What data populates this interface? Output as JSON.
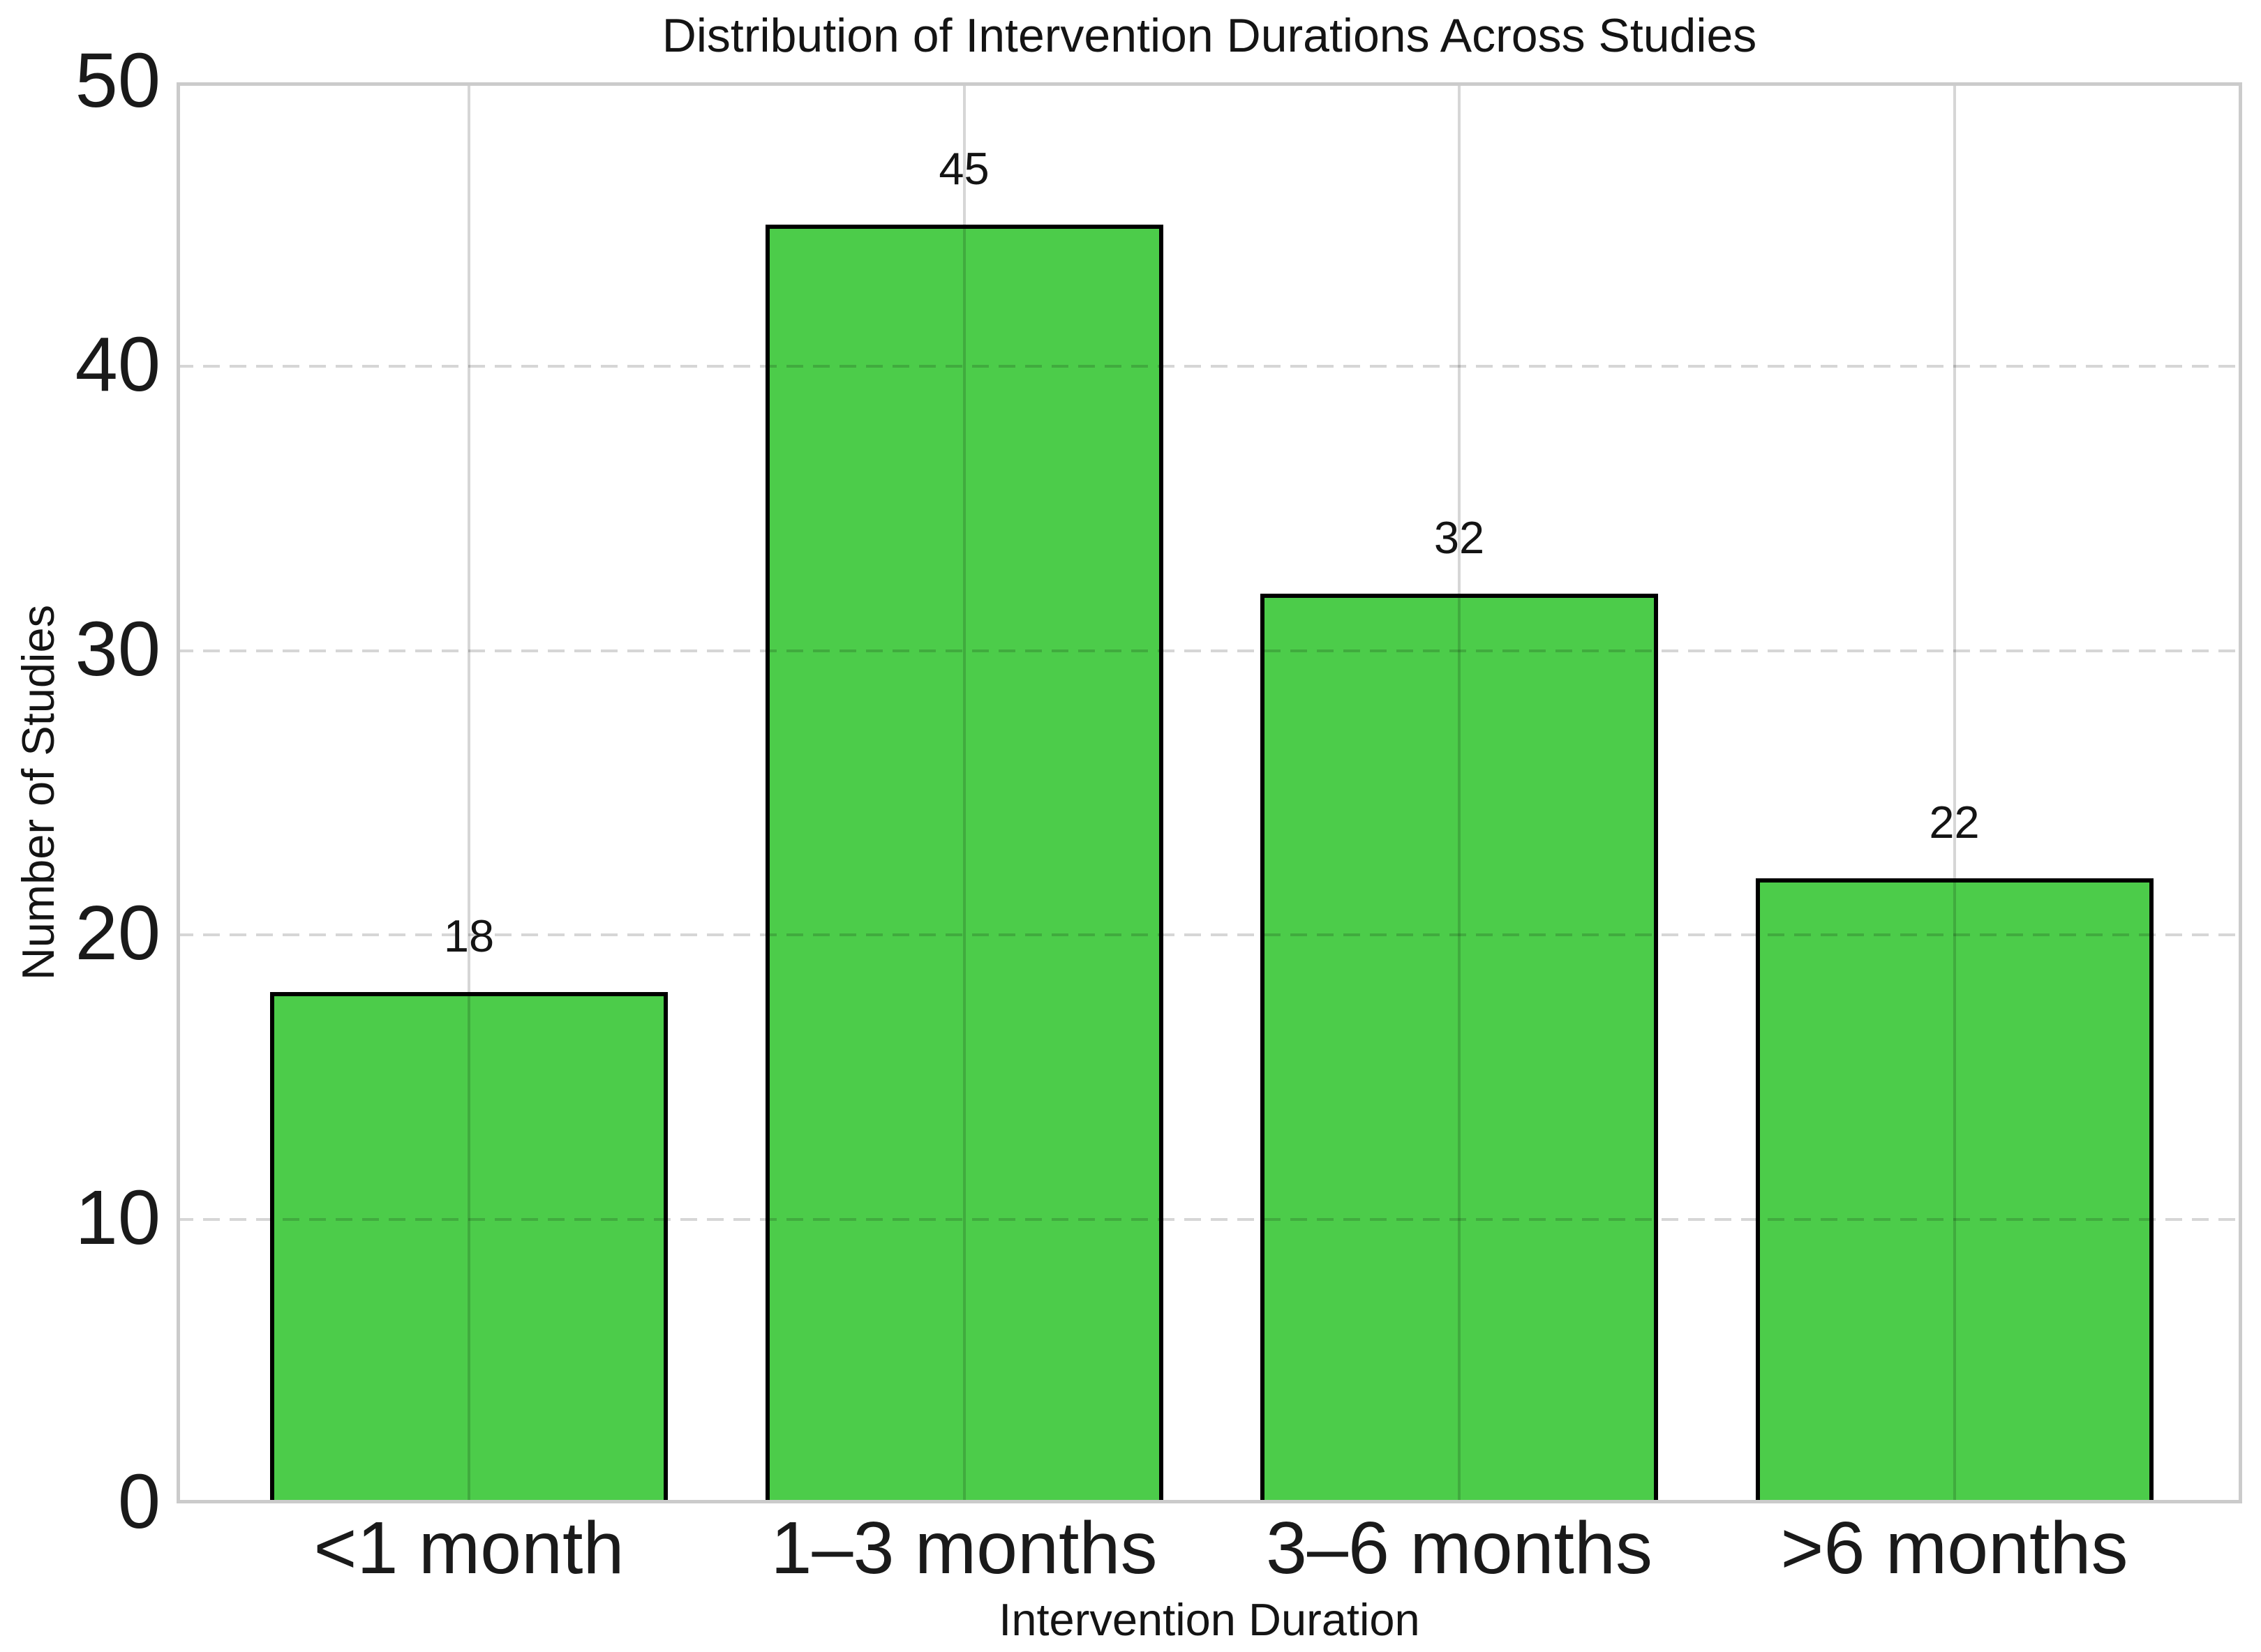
{
  "chart_data": {
    "type": "bar",
    "title": "Distribution of Intervention Durations Across Studies",
    "xlabel": "Intervention Duration",
    "ylabel": "Number of Studies",
    "categories": [
      "<1 month",
      "1–3 months",
      "3–6 months",
      ">6 months"
    ],
    "values": [
      18,
      45,
      32,
      22
    ],
    "bar_value_labels": [
      "18",
      "45",
      "32",
      "22"
    ],
    "y_ticks": [
      0,
      10,
      20,
      30,
      40,
      50
    ],
    "ylim": [
      0,
      50
    ],
    "grid": {
      "horizontal_style": "dashed",
      "vertical_style": "solid",
      "drawn_over_bars": true
    },
    "legend_position": "none",
    "colors": {
      "bar_fill": "#4ccc4a",
      "bar_edge": "#000000",
      "gridline": "#d6d6d6",
      "spine": "#cbcbcb",
      "text": "#141414",
      "tick_text": "#1a1a1a",
      "background": "#ffffff"
    }
  }
}
